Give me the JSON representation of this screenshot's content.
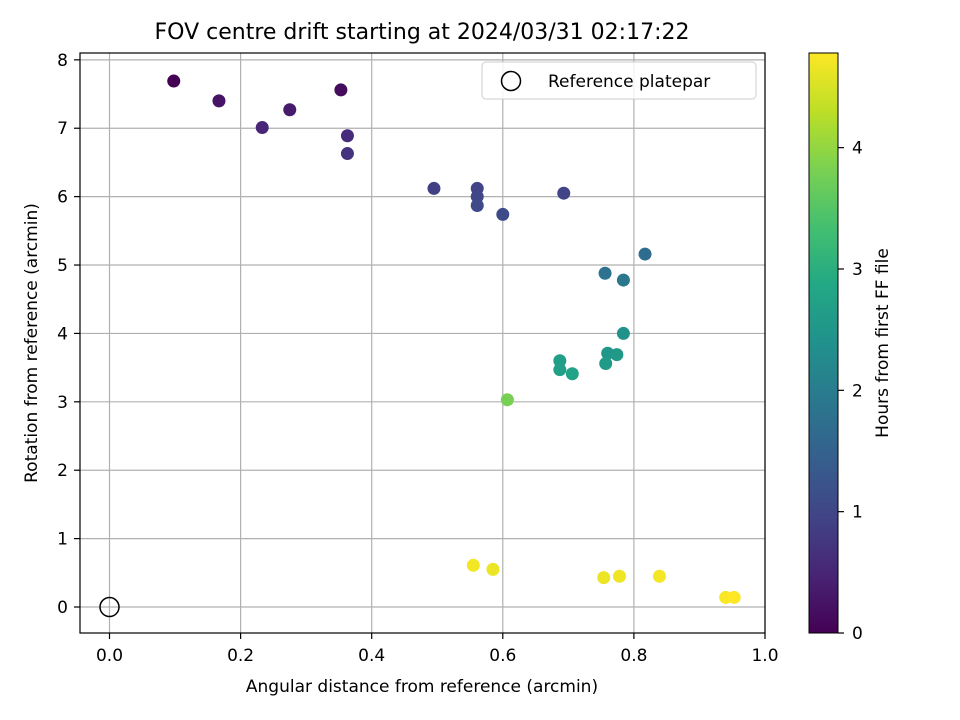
{
  "chart_data": {
    "type": "scatter",
    "title": "FOV centre drift starting at 2024/03/31 02:17:22",
    "xlabel": "Angular distance from reference (arcmin)",
    "ylabel": "Rotation from reference (arcmin)",
    "xlim": [
      -0.045,
      1.0
    ],
    "ylim": [
      -0.38,
      8.1
    ],
    "xticks": [
      0.0,
      0.2,
      0.4,
      0.6,
      0.8,
      1.0
    ],
    "xtick_labels": [
      "0.0",
      "0.2",
      "0.4",
      "0.6",
      "0.8",
      "1.0"
    ],
    "yticks": [
      0,
      1,
      2,
      3,
      4,
      5,
      6,
      7,
      8
    ],
    "ytick_labels": [
      "0",
      "1",
      "2",
      "3",
      "4",
      "5",
      "6",
      "7",
      "8"
    ],
    "grid": true,
    "legend": {
      "placement": "top-right",
      "entries": [
        "Reference platepar"
      ]
    },
    "reference_point": {
      "x": 0.0,
      "y": 0.0,
      "label": "Reference platepar"
    },
    "colorbar": {
      "label": "Hours from first FF file",
      "colormap": "viridis",
      "range": [
        0,
        4.78
      ],
      "ticks": [
        0,
        1,
        2,
        3,
        4
      ],
      "tick_labels": [
        "0",
        "1",
        "2",
        "3",
        "4"
      ]
    },
    "points": [
      {
        "x": 0.098,
        "y": 7.69,
        "c": 0.0
      },
      {
        "x": 0.167,
        "y": 7.4,
        "c": 0.25
      },
      {
        "x": 0.233,
        "y": 7.01,
        "c": 0.5
      },
      {
        "x": 0.275,
        "y": 7.27,
        "c": 0.35
      },
      {
        "x": 0.353,
        "y": 7.56,
        "c": 0.15
      },
      {
        "x": 0.363,
        "y": 6.89,
        "c": 0.6
      },
      {
        "x": 0.363,
        "y": 6.63,
        "c": 0.7
      },
      {
        "x": 0.495,
        "y": 6.12,
        "c": 0.9
      },
      {
        "x": 0.561,
        "y": 6.12,
        "c": 0.95
      },
      {
        "x": 0.561,
        "y": 6.0,
        "c": 1.0
      },
      {
        "x": 0.561,
        "y": 5.87,
        "c": 1.05
      },
      {
        "x": 0.6,
        "y": 5.74,
        "c": 1.1
      },
      {
        "x": 0.693,
        "y": 6.05,
        "c": 0.95
      },
      {
        "x": 0.817,
        "y": 5.16,
        "c": 1.7
      },
      {
        "x": 0.756,
        "y": 4.88,
        "c": 1.8
      },
      {
        "x": 0.784,
        "y": 4.78,
        "c": 1.9
      },
      {
        "x": 0.784,
        "y": 4.0,
        "c": 2.4
      },
      {
        "x": 0.76,
        "y": 3.71,
        "c": 2.5
      },
      {
        "x": 0.774,
        "y": 3.69,
        "c": 2.55
      },
      {
        "x": 0.757,
        "y": 3.56,
        "c": 2.6
      },
      {
        "x": 0.687,
        "y": 3.6,
        "c": 2.65
      },
      {
        "x": 0.687,
        "y": 3.47,
        "c": 2.7
      },
      {
        "x": 0.706,
        "y": 3.41,
        "c": 2.75
      },
      {
        "x": 0.607,
        "y": 3.03,
        "c": 3.8
      },
      {
        "x": 0.555,
        "y": 0.61,
        "c": 4.7
      },
      {
        "x": 0.585,
        "y": 0.55,
        "c": 4.65
      },
      {
        "x": 0.754,
        "y": 0.43,
        "c": 4.65
      },
      {
        "x": 0.778,
        "y": 0.45,
        "c": 4.68
      },
      {
        "x": 0.839,
        "y": 0.45,
        "c": 4.7
      },
      {
        "x": 0.94,
        "y": 0.14,
        "c": 4.75
      },
      {
        "x": 0.953,
        "y": 0.14,
        "c": 4.78
      }
    ]
  }
}
